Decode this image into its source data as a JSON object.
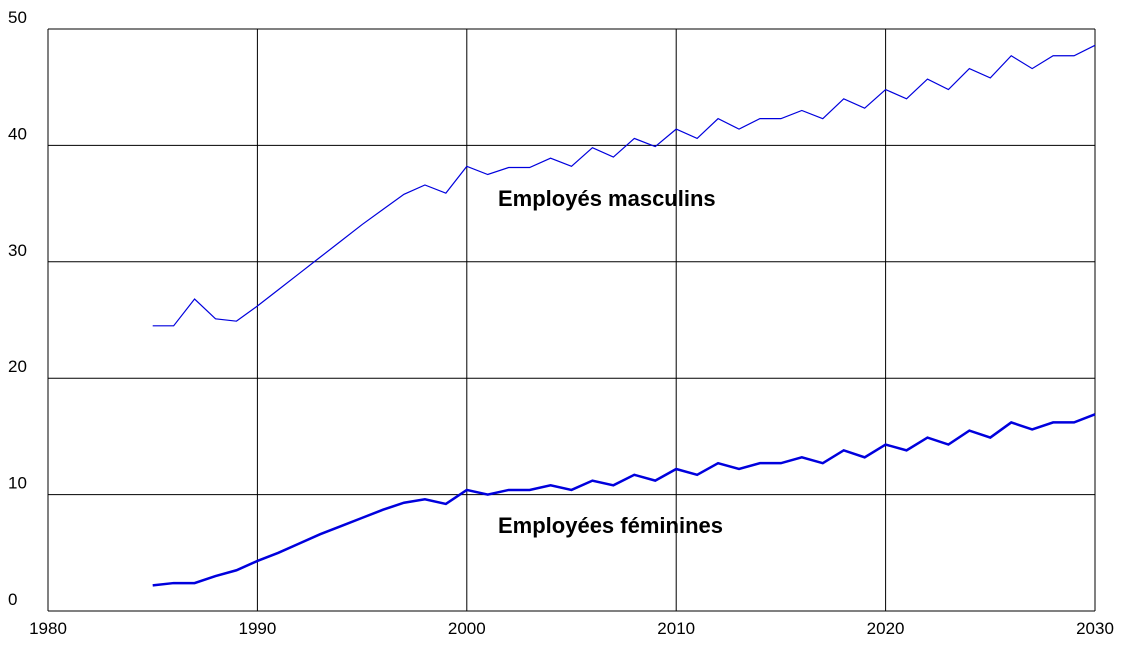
{
  "chart_data": {
    "type": "line",
    "annotations": [
      "Employés masculins",
      "Employées féminines"
    ],
    "x": [
      1985,
      1986,
      1987,
      1988,
      1989,
      1990,
      1991,
      1992,
      1993,
      1994,
      1995,
      1996,
      1997,
      1998,
      1999,
      2000,
      2001,
      2002,
      2003,
      2004,
      2005,
      2006,
      2007,
      2008,
      2009,
      2010,
      2011,
      2012,
      2013,
      2014,
      2015,
      2016,
      2017,
      2018,
      2019,
      2020,
      2021,
      2022,
      2023,
      2024,
      2025,
      2026,
      2027,
      2028,
      2029,
      2030
    ],
    "series": [
      {
        "color": "#0000dd",
        "values": [
          24.5,
          24.5,
          26.8,
          25.1,
          24.9,
          26.2,
          27.6,
          29.0,
          30.4,
          31.8,
          33.2,
          34.5,
          35.8,
          36.6,
          35.9,
          38.2,
          37.5,
          38.1,
          38.1,
          38.9,
          38.2,
          39.8,
          39.0,
          40.6,
          39.9,
          41.4,
          40.6,
          42.3,
          41.4,
          42.3,
          42.3,
          43.0,
          42.3,
          44.0,
          43.2,
          44.8,
          44.0,
          45.7,
          44.8,
          46.6,
          45.8,
          47.7,
          46.6,
          47.7,
          47.7,
          48.6
        ]
      },
      {
        "color": "#0000dd",
        "values": [
          2.2,
          2.4,
          2.4,
          3.0,
          3.5,
          4.3,
          5.0,
          5.8,
          6.6,
          7.3,
          8.0,
          8.7,
          9.3,
          9.6,
          9.2,
          10.4,
          10.0,
          10.4,
          10.4,
          10.8,
          10.4,
          11.2,
          10.8,
          11.7,
          11.2,
          12.2,
          11.7,
          12.7,
          12.2,
          12.7,
          12.7,
          13.2,
          12.7,
          13.8,
          13.2,
          14.3,
          13.8,
          14.9,
          14.3,
          15.5,
          14.9,
          16.2,
          15.6,
          16.2,
          16.2,
          16.9
        ]
      }
    ],
    "xlim": [
      1980,
      2030
    ],
    "xticks": [
      1980,
      1990,
      2000,
      2010,
      2020,
      2030
    ],
    "ylim": [
      0,
      50
    ],
    "yticks": [
      0,
      10,
      20,
      30,
      40,
      50
    ],
    "grid": true
  }
}
